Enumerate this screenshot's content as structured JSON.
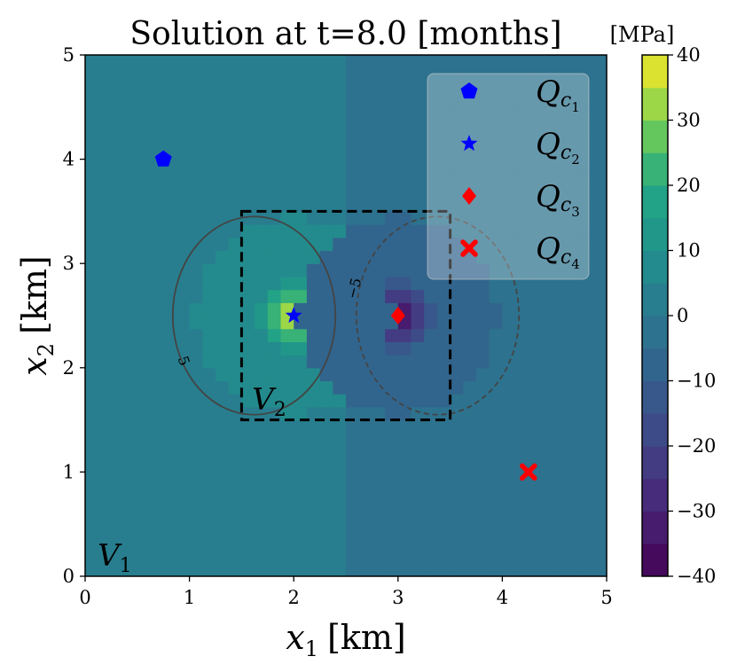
{
  "chart_data": {
    "type": "heatmap",
    "title": "Solution at t=8.0 [months]",
    "xlabel_var": "x",
    "xlabel_sub": "1",
    "xlabel_unit": "[km]",
    "ylabel_var": "x",
    "ylabel_sub": "2",
    "ylabel_unit": "[km]",
    "xlim": [
      0,
      5
    ],
    "ylim": [
      0,
      5
    ],
    "xticks": [
      "0",
      "1",
      "2",
      "3",
      "4",
      "5"
    ],
    "yticks": [
      "0",
      "1",
      "2",
      "3",
      "4",
      "5"
    ],
    "colorbar": {
      "label": "[MPa]",
      "range": [
        -40,
        40
      ],
      "ticks": [
        "40",
        "30",
        "20",
        "10",
        "0",
        "−10",
        "−20",
        "−30",
        "−40"
      ],
      "tick_values": [
        40,
        30,
        20,
        10,
        0,
        -10,
        -20,
        -30,
        -40
      ]
    },
    "field": {
      "background_left_level": 2.5,
      "background_right_level": -2.5,
      "positive_source": {
        "x": 2.0,
        "y": 2.5,
        "peak": 30
      },
      "negative_source": {
        "x": 3.0,
        "y": 2.5,
        "peak": -30
      }
    },
    "contours": [
      {
        "level": 5,
        "label": "5",
        "center": [
          1.62,
          2.5
        ],
        "rx": 0.78,
        "ry": 0.95,
        "dashed": false
      },
      {
        "level": -5,
        "label": "−5",
        "center": [
          3.38,
          2.5
        ],
        "rx": 0.78,
        "ry": 0.95,
        "dashed": true
      }
    ],
    "subdomain_box": {
      "x0": 1.5,
      "x1": 3.5,
      "y0": 1.5,
      "y1": 3.5
    },
    "region_labels": [
      {
        "var": "V",
        "sub": "1",
        "x": 0.12,
        "y": 0.1
      },
      {
        "var": "V",
        "sub": "2",
        "x": 1.6,
        "y": 1.6
      }
    ],
    "markers": [
      {
        "name": "c1",
        "symbol": "pentagon",
        "color": "#0000ff",
        "x": 0.75,
        "y": 4.0,
        "legend_var": "Q",
        "legend_sub": "c",
        "legend_subsub": "1"
      },
      {
        "name": "c2",
        "symbol": "star",
        "color": "#0000ff",
        "x": 2.0,
        "y": 2.5,
        "legend_var": "Q",
        "legend_sub": "c",
        "legend_subsub": "2"
      },
      {
        "name": "c3",
        "symbol": "diamond",
        "color": "#ff0000",
        "x": 3.0,
        "y": 2.5,
        "legend_var": "Q",
        "legend_sub": "c",
        "legend_subsub": "3"
      },
      {
        "name": "c4",
        "symbol": "x",
        "color": "#ff0000",
        "x": 4.25,
        "y": 1.0,
        "legend_var": "Q",
        "legend_sub": "c",
        "legend_subsub": "4"
      }
    ],
    "legend_placement": "top-right",
    "grid": false
  }
}
